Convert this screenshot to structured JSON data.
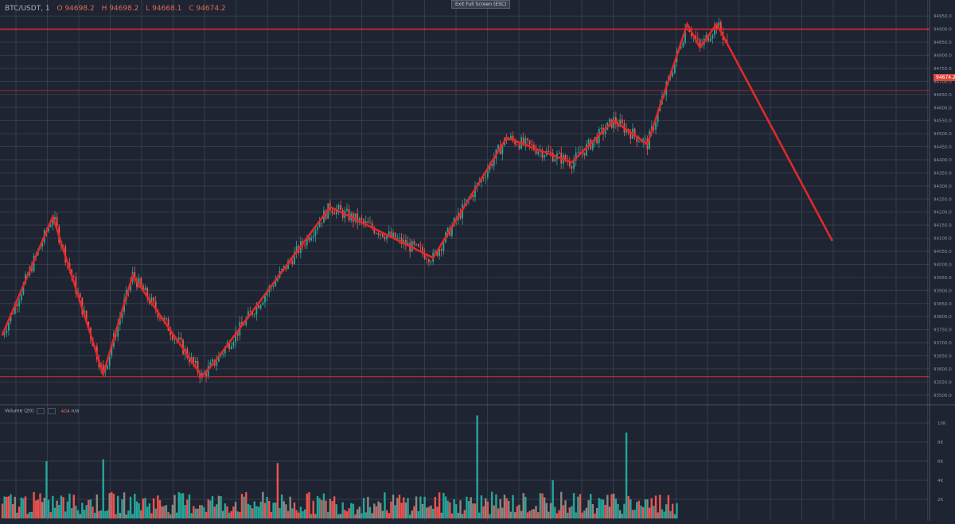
{
  "header": {
    "symbol": "BTC/USDT, 1",
    "open": "O 94698.2",
    "high": "H 94698.2",
    "low": "L 94668.1",
    "close": "C 94674.2",
    "exit_fullscreen": "Exit Full Screen (ESC)"
  },
  "volume_panel": {
    "label": "Volume (20)",
    "value": "404",
    "na": "n/a"
  },
  "current_price_label": "94674.2",
  "colors": {
    "background": "#1e2431",
    "grid": "#3a4252",
    "up": "#26a69a",
    "down": "#ef5350",
    "neutral": "#8c8884",
    "annotation": "#e0292b",
    "axis_text": "#8b93a3"
  },
  "chart_data": [
    {
      "type": "candlestick",
      "title": "BTC/USDT, 1",
      "price_axis_ticks": [
        "94950.0",
        "94900.0",
        "94850.0",
        "94800.0",
        "94750.0",
        "94700.0",
        "94650.0",
        "94600.0",
        "94550.0",
        "94500.0",
        "94450.0",
        "94400.0",
        "94350.0",
        "94300.0",
        "94250.0",
        "94200.0",
        "94150.0",
        "94100.0",
        "94050.0",
        "94000.0",
        "93950.0",
        "93900.0",
        "93850.0",
        "93800.0",
        "93750.0",
        "93700.0",
        "93650.0",
        "93600.0",
        "93550.0",
        "93500.0"
      ],
      "ylim": [
        93475,
        94975
      ],
      "horizontal_levels": [
        94900,
        93570,
        94665
      ],
      "zigzag_points": [
        [
          0,
          93730
        ],
        [
          24,
          94183
        ],
        [
          48,
          93580
        ],
        [
          62,
          93958
        ],
        [
          95,
          93572
        ],
        [
          101,
          93625
        ],
        [
          156,
          94220
        ],
        [
          205,
          94025
        ],
        [
          240,
          94485
        ],
        [
          271,
          94390
        ],
        [
          291,
          94550
        ],
        [
          307,
          94460
        ],
        [
          326,
          94920
        ],
        [
          332,
          94830
        ],
        [
          340,
          94920
        ],
        [
          395,
          94090
        ]
      ],
      "grid": true
    },
    {
      "type": "bar",
      "title": "Volume (20)",
      "y_ticks": [
        "10K",
        "8K",
        "6K",
        "4K",
        "2K"
      ],
      "ylim": [
        0,
        11000
      ],
      "spikes": [
        {
          "bar": 21,
          "value": 6000
        },
        {
          "bar": 48,
          "value": 6200
        },
        {
          "bar": 131,
          "value": 5800
        },
        {
          "bar": 226,
          "value": 10800
        },
        {
          "bar": 262,
          "value": 4000
        },
        {
          "bar": 297,
          "value": 9000
        }
      ],
      "series_count": 322
    }
  ]
}
